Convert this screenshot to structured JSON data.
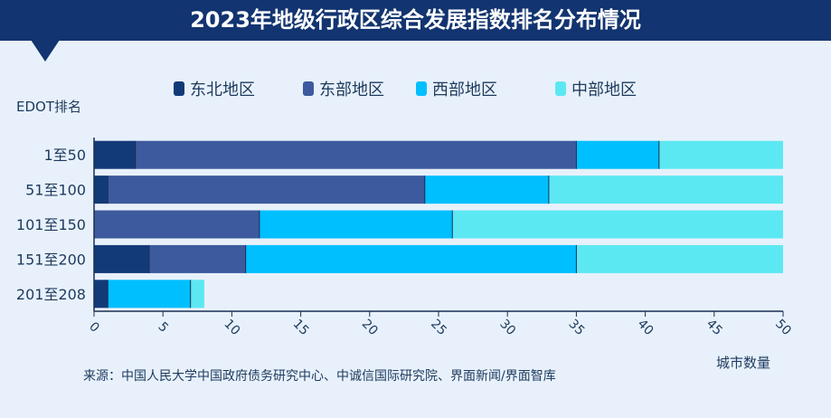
{
  "header": {
    "title": "2023年地级行政区综合发展指数排名分布情况"
  },
  "footer": {
    "source": "来源：中国人民大学中国政府债务研究中心、中诚信国际研究院、界面新闻/界面智库"
  },
  "chart_data": {
    "type": "bar",
    "orientation": "horizontal",
    "stacked": true,
    "title": "2023年地级行政区综合发展指数排名分布情况",
    "xlabel": "城市数量",
    "ylabel": "EDOT排名",
    "xlim": [
      0,
      50
    ],
    "xticks": [
      0,
      5,
      10,
      15,
      20,
      25,
      30,
      35,
      40,
      45,
      50
    ],
    "categories": [
      "1至50",
      "51至100",
      "101至150",
      "151至200",
      "201至208"
    ],
    "series": [
      {
        "name": "东北地区",
        "color": "#133a78",
        "values": [
          3,
          1,
          0,
          4,
          1
        ]
      },
      {
        "name": "东部地区",
        "color": "#3d5a9e",
        "values": [
          32,
          23,
          12,
          7,
          0
        ]
      },
      {
        "name": "西部地区",
        "color": "#00bfff",
        "values": [
          6,
          9,
          14,
          24,
          6
        ]
      },
      {
        "name": "中部地区",
        "color": "#5ce8f2",
        "values": [
          9,
          17,
          24,
          15,
          1
        ]
      }
    ],
    "legend_position": "top",
    "grid": false
  }
}
